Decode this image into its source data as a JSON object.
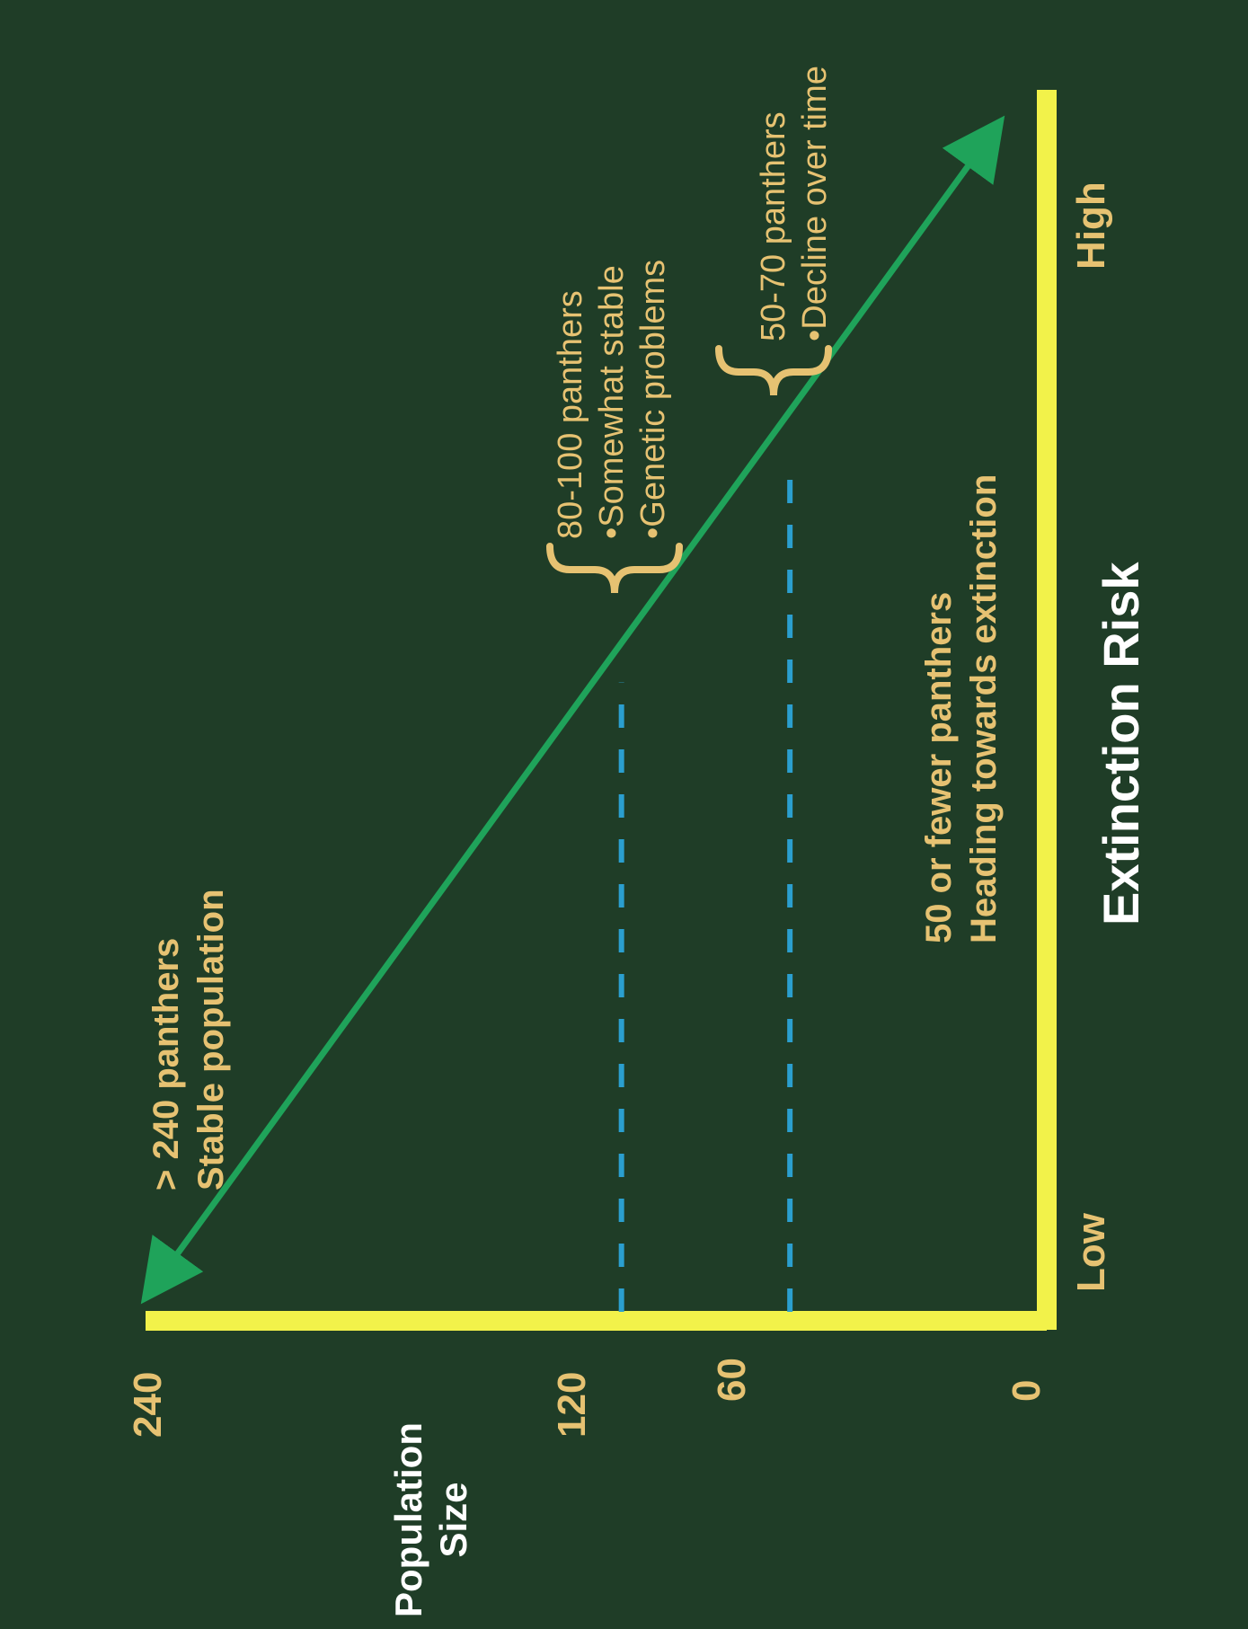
{
  "colors": {
    "background": "#1f3d27",
    "axis": "#f2f24a",
    "trend": "#1fa35a",
    "dashed": "#2b9fcf",
    "labels": "#e6c272",
    "title": "#ffffff"
  },
  "chart_data": {
    "type": "line",
    "orientation": "rotated-90-ccw",
    "title": "",
    "xlabel": "Extinction Risk",
    "ylabel_lines": [
      "Population",
      "Size"
    ],
    "y_ticks": [
      "240",
      "120",
      "60",
      "0"
    ],
    "ylim": [
      0,
      240
    ],
    "x_ticks": [
      "Low",
      "High"
    ],
    "series": [
      {
        "points": [
          {
            "risk": 0.0,
            "population": 240
          },
          {
            "risk": 1.0,
            "population": 0
          }
        ],
        "double_arrow": true
      }
    ],
    "reference_lines": [
      {
        "population": 110,
        "style": "dashed"
      },
      {
        "population": 65,
        "style": "dashed"
      }
    ],
    "annotations": {
      "top": [
        "> 240 panthers",
        "Stable population"
      ],
      "mid": [
        "80-100 panthers",
        "•Somewhat stable",
        "•Genetic problems"
      ],
      "low": [
        "50-70 panthers",
        "•Decline over time"
      ],
      "bottom": [
        "50 or fewer panthers",
        "Heading towards extinction"
      ]
    },
    "grid": false,
    "legend": "none"
  }
}
